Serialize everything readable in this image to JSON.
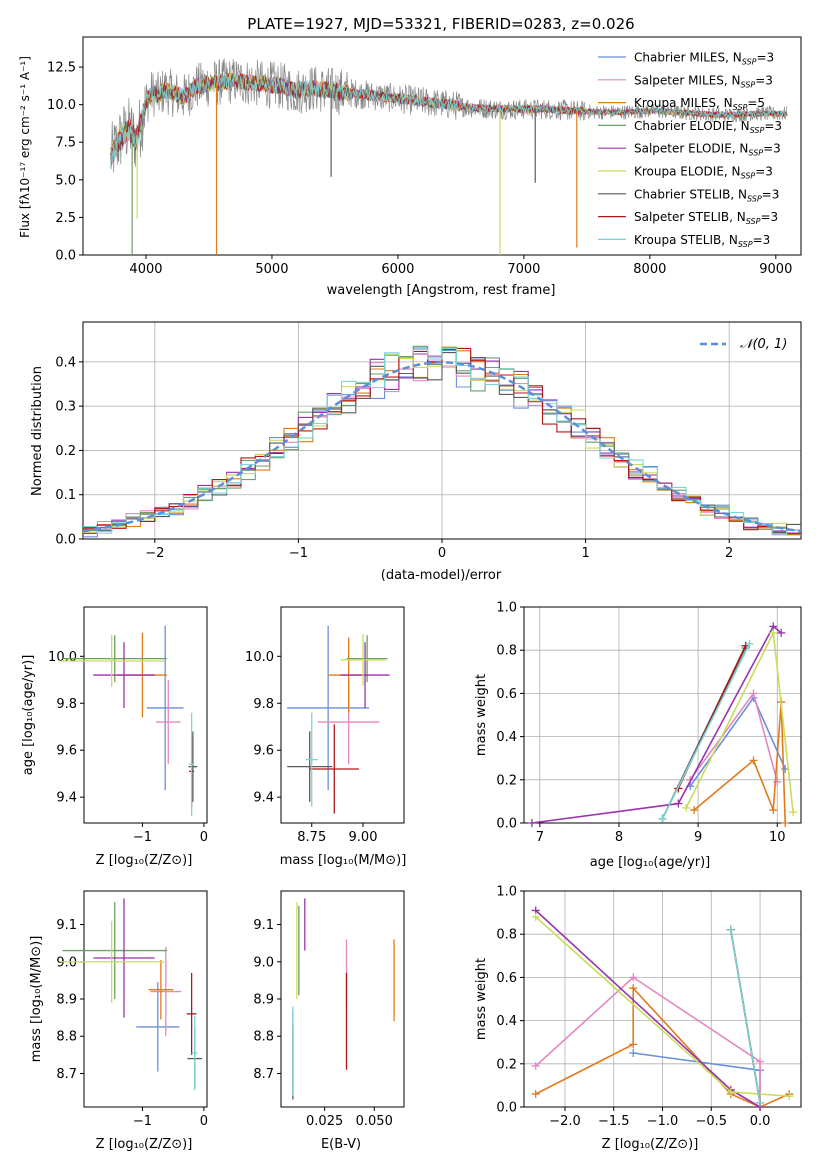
{
  "title": "PLATE=1927, MJD=53321, FIBERID=0283, z=0.026",
  "models": [
    {
      "name": "Chabrier MILES",
      "nssp": "3",
      "color": "#6a8fd9"
    },
    {
      "name": "Salpeter MILES",
      "nssp": "3",
      "color": "#e587c2"
    },
    {
      "name": "Kroupa MILES",
      "nssp": "5",
      "color": "#e07b1c"
    },
    {
      "name": "Chabrier ELODIE",
      "nssp": "3",
      "color": "#6a9e6a"
    },
    {
      "name": "Salpeter ELODIE",
      "nssp": "3",
      "color": "#9b32ad"
    },
    {
      "name": "Kroupa ELODIE",
      "nssp": "3",
      "color": "#c8dd5a"
    },
    {
      "name": "Chabrier STELIB",
      "nssp": "3",
      "color": "#5a5a5a"
    },
    {
      "name": "Salpeter STELIB",
      "nssp": "3",
      "color": "#b01818"
    },
    {
      "name": "Kroupa STELIB",
      "nssp": "3",
      "color": "#7ad6d6"
    }
  ],
  "legend_nssp_prefix": "N",
  "legend_nssp_sub": "SSP",
  "chart_data": [
    {
      "id": "spectrum",
      "type": "line",
      "xlabel": "wavelength [Angstrom, rest frame]",
      "ylabel": "Flux [fλ10⁻¹⁷ erg cm⁻² s⁻¹ A⁻¹]",
      "xlim": [
        3500,
        9200
      ],
      "ylim": [
        0,
        14.5
      ],
      "xticks": [
        4000,
        5000,
        6000,
        7000,
        8000,
        9000
      ],
      "yticks": [
        0.0,
        2.5,
        5.0,
        7.5,
        10.0,
        12.5
      ],
      "data_color": "#888888",
      "continuum": [
        [
          3720,
          6.5
        ],
        [
          3760,
          7.2
        ],
        [
          3820,
          8.0
        ],
        [
          3870,
          8.4
        ],
        [
          3920,
          7.6
        ],
        [
          3970,
          9.0
        ],
        [
          4000,
          10.2
        ],
        [
          4050,
          10.8
        ],
        [
          4100,
          10.6
        ],
        [
          4150,
          11.0
        ],
        [
          4200,
          10.8
        ],
        [
          4300,
          10.5
        ],
        [
          4400,
          11.2
        ],
        [
          4500,
          11.4
        ],
        [
          4600,
          11.5
        ],
        [
          4700,
          11.6
        ],
        [
          4800,
          11.5
        ],
        [
          4900,
          11.4
        ],
        [
          5000,
          11.3
        ],
        [
          5100,
          11.2
        ],
        [
          5200,
          10.9
        ],
        [
          5300,
          11.1
        ],
        [
          5400,
          11.0
        ],
        [
          5500,
          10.9
        ],
        [
          5600,
          10.8
        ],
        [
          5800,
          10.6
        ],
        [
          6000,
          10.4
        ],
        [
          6200,
          10.2
        ],
        [
          6400,
          10.0
        ],
        [
          6600,
          9.8
        ],
        [
          6800,
          9.7
        ],
        [
          7000,
          9.7
        ],
        [
          7200,
          9.7
        ],
        [
          7400,
          9.6
        ],
        [
          7600,
          9.5
        ],
        [
          7800,
          9.5
        ],
        [
          8000,
          9.6
        ],
        [
          8200,
          9.5
        ],
        [
          8400,
          9.4
        ],
        [
          8600,
          9.3
        ],
        [
          8800,
          9.4
        ],
        [
          9000,
          9.4
        ],
        [
          9090,
          9.4
        ]
      ],
      "noise_ranges": [
        [
          3720,
          4000,
          2.2
        ],
        [
          4000,
          5600,
          1.6
        ],
        [
          5600,
          6500,
          1.0
        ],
        [
          6500,
          7500,
          0.7
        ],
        [
          7500,
          9090,
          0.5
        ]
      ],
      "spikes": [
        {
          "x": 3890,
          "bottom": 0.0,
          "color": "#6a9e6a"
        },
        {
          "x": 3930,
          "bottom": 2.4,
          "color": "#c8dd5a"
        },
        {
          "x": 4560,
          "bottom": 0.0,
          "color": "#e07b1c"
        },
        {
          "x": 5470,
          "bottom": 5.2,
          "color": "#5a5a5a"
        },
        {
          "x": 6810,
          "bottom": 0.0,
          "color": "#c8dd5a"
        },
        {
          "x": 7090,
          "bottom": 4.8,
          "color": "#5a5a5a"
        },
        {
          "x": 7420,
          "bottom": 0.5,
          "color": "#e07b1c"
        }
      ]
    },
    {
      "id": "residuals",
      "type": "line",
      "xlabel": "(data-model)/error",
      "ylabel": "Normed distribution",
      "xlim": [
        -2.5,
        2.5
      ],
      "ylim": [
        0.0,
        0.49
      ],
      "xticks": [
        -2,
        -1,
        0,
        1,
        2
      ],
      "yticks": [
        0.0,
        0.1,
        0.2,
        0.3,
        0.4
      ],
      "grid": true,
      "legend": "top-right",
      "legend_label": "𝒩(0, 1)",
      "bin_width": 0.1,
      "gaussian": {
        "mean": 0,
        "sigma": 1,
        "color": "#5b8fd9"
      }
    },
    {
      "id": "age-vs-Z",
      "type": "scatter",
      "xlabel": "Z [log₁₀(Z/Z⊙)]",
      "ylabel": "age  [log₁₀(age/yr)]",
      "xlim": [
        -1.95,
        0.05
      ],
      "ylim": [
        9.29,
        10.21
      ],
      "xticks": [
        -1,
        0
      ],
      "yticks": [
        9.4,
        9.6,
        9.8,
        10.0
      ],
      "points": [
        {
          "x": -0.63,
          "xerr": 0.3,
          "y": 9.78,
          "yerr": 0.35
        },
        {
          "x": -0.58,
          "xerr": 0.2,
          "y": 9.72,
          "yerr": 0.18
        },
        {
          "x": -1.0,
          "xerr": 0.4,
          "y": 9.92,
          "yerr": 0.18
        },
        {
          "x": -1.45,
          "xerr": 0.85,
          "y": 9.99,
          "yerr": 0.1
        },
        {
          "x": -1.3,
          "xerr": 0.5,
          "y": 9.92,
          "yerr": 0.14
        },
        {
          "x": -1.5,
          "xerr": 0.85,
          "y": 9.98,
          "yerr": 0.11
        },
        {
          "x": -0.18,
          "xerr": 0.07,
          "y": 9.53,
          "yerr": 0.15
        },
        {
          "x": -0.2,
          "xerr": 0.04,
          "y": 9.51,
          "yerr": 0.15
        },
        {
          "x": -0.2,
          "xerr": 0.04,
          "y": 9.54,
          "yerr": 0.22
        }
      ]
    },
    {
      "id": "age-vs-mass",
      "type": "scatter",
      "xlabel": "mass [log₁₀(M/M⊙)]",
      "ylabel": "",
      "xlim": [
        8.6,
        9.2
      ],
      "ylim": [
        9.29,
        10.21
      ],
      "xticks": [
        8.75,
        9.0
      ],
      "yticks": [
        9.4,
        9.6,
        9.8,
        10.0
      ],
      "points": [
        {
          "x": 8.83,
          "xerr": 0.2,
          "y": 9.78,
          "yerr": 0.35
        },
        {
          "x": 8.93,
          "xerr": 0.15,
          "y": 9.72,
          "yerr": 0.18
        },
        {
          "x": 8.93,
          "xerr": 0.1,
          "y": 9.92,
          "yerr": 0.16
        },
        {
          "x": 9.02,
          "xerr": 0.1,
          "y": 9.99,
          "yerr": 0.1
        },
        {
          "x": 9.01,
          "xerr": 0.12,
          "y": 9.92,
          "yerr": 0.14
        },
        {
          "x": 9.0,
          "xerr": 0.11,
          "y": 9.985,
          "yerr": 0.11
        },
        {
          "x": 8.74,
          "xerr": 0.11,
          "y": 9.53,
          "yerr": 0.15
        },
        {
          "x": 8.86,
          "xerr": 0.12,
          "y": 9.52,
          "yerr": 0.19
        },
        {
          "x": 8.75,
          "xerr": 0.03,
          "y": 9.56,
          "yerr": 0.2
        }
      ]
    },
    {
      "id": "weight-vs-age",
      "type": "line",
      "xlabel": "age  [log₁₀(age/yr)]",
      "ylabel": "mass weight",
      "xlim": [
        6.8,
        10.3
      ],
      "ylim": [
        0.0,
        1.0
      ],
      "xticks": [
        7,
        8,
        9,
        10
      ],
      "yticks": [
        0.0,
        0.2,
        0.4,
        0.6,
        0.8,
        1.0
      ],
      "grid": true,
      "series": [
        [
          [
            8.9,
            0.17
          ],
          [
            9.7,
            0.58
          ],
          [
            10.1,
            0.25
          ]
        ],
        [
          [
            8.9,
            0.2
          ],
          [
            9.7,
            0.6
          ],
          [
            10.0,
            0.19
          ]
        ],
        [
          [
            8.95,
            0.06
          ],
          [
            9.7,
            0.29
          ],
          [
            9.95,
            0.06
          ],
          [
            10.05,
            0.56
          ],
          [
            10.1,
            0.0
          ]
        ],
        [
          [
            8.55,
            0.02
          ],
          [
            9.6,
            0.81
          ]
        ],
        [
          [
            6.9,
            0.0
          ],
          [
            8.75,
            0.09
          ],
          [
            9.95,
            0.91
          ],
          [
            10.05,
            0.88
          ]
        ],
        [
          [
            8.85,
            0.07
          ],
          [
            9.95,
            0.88
          ],
          [
            10.2,
            0.05
          ]
        ],
        [
          [
            8.55,
            0.02
          ],
          [
            9.6,
            0.82
          ]
        ],
        [
          [
            8.75,
            0.16
          ],
          [
            9.6,
            0.82
          ]
        ],
        [
          [
            8.55,
            0.02
          ],
          [
            9.65,
            0.83
          ]
        ]
      ]
    },
    {
      "id": "mass-vs-Z",
      "type": "scatter",
      "xlabel": "Z [log₁₀(Z/Z⊙)]",
      "ylabel": "mass [log₁₀(M/M⊙)]",
      "xlim": [
        -1.95,
        0.05
      ],
      "ylim": [
        8.61,
        9.19
      ],
      "xticks": [
        -1,
        0
      ],
      "yticks": [
        8.7,
        8.8,
        8.9,
        9.0,
        9.1
      ],
      "points": [
        {
          "x": -0.75,
          "xerr": 0.35,
          "y": 8.825,
          "yerr": 0.12
        },
        {
          "x": -0.62,
          "xerr": 0.25,
          "y": 8.92,
          "yerr": 0.12
        },
        {
          "x": -0.7,
          "xerr": 0.2,
          "y": 8.925,
          "yerr": 0.08
        },
        {
          "x": -1.45,
          "xerr": 0.85,
          "y": 9.03,
          "yerr": 0.13
        },
        {
          "x": -1.3,
          "xerr": 0.5,
          "y": 9.01,
          "yerr": 0.16
        },
        {
          "x": -1.5,
          "xerr": 0.85,
          "y": 9.0,
          "yerr": 0.11
        },
        {
          "x": -0.15,
          "xerr": 0.12,
          "y": 8.74,
          "yerr": 0.08
        },
        {
          "x": -0.2,
          "xerr": 0.08,
          "y": 8.86,
          "yerr": 0.11
        },
        {
          "x": -0.15,
          "xerr": 0.05,
          "y": 8.755,
          "yerr": 0.1
        }
      ]
    },
    {
      "id": "mass-vs-EBV",
      "type": "scatter",
      "xlabel": "E(B-V)",
      "ylabel": "",
      "xlim": [
        0.003,
        0.065
      ],
      "ylim": [
        8.61,
        9.19
      ],
      "xticks": [
        0.025,
        0.05
      ],
      "yticks": [
        8.7,
        8.8,
        8.9,
        9.0,
        9.1
      ],
      "points": [
        {
          "x": 0.009,
          "xerr": 0.0,
          "y": 8.76,
          "yerr": 0.11
        },
        {
          "x": 0.036,
          "xerr": 0.0,
          "y": 8.97,
          "yerr": 0.09
        },
        {
          "x": 0.06,
          "xerr": 0.0,
          "y": 8.95,
          "yerr": 0.11
        },
        {
          "x": 0.012,
          "xerr": 0.0,
          "y": 9.03,
          "yerr": 0.12
        },
        {
          "x": 0.015,
          "xerr": 0.0,
          "y": 9.1,
          "yerr": 0.07
        },
        {
          "x": 0.011,
          "xerr": 0.0,
          "y": 9.03,
          "yerr": 0.13
        },
        {
          "x": 0.009,
          "xerr": 0.0,
          "y": 8.73,
          "yerr": 0.1
        },
        {
          "x": 0.036,
          "xerr": 0.0,
          "y": 8.84,
          "yerr": 0.13
        },
        {
          "x": 0.009,
          "xerr": 0.0,
          "y": 8.76,
          "yerr": 0.12
        }
      ]
    },
    {
      "id": "weight-vs-Z",
      "type": "line",
      "xlabel": "Z [log₁₀(Z/Z⊙)]",
      "ylabel": "mass weight",
      "xlim": [
        -2.42,
        0.42
      ],
      "ylim": [
        0.0,
        1.0
      ],
      "xticks": [
        -2.0,
        -1.5,
        -1.0,
        -0.5,
        0.0
      ],
      "yticks": [
        0.0,
        0.2,
        0.4,
        0.6,
        0.8,
        1.0
      ],
      "grid": true,
      "series": [
        [
          [
            -1.3,
            0.25
          ],
          [
            0.0,
            0.17
          ],
          [
            0.0,
            0.0
          ]
        ],
        [
          [
            -2.3,
            0.19
          ],
          [
            -1.3,
            0.6
          ],
          [
            0.0,
            0.21
          ],
          [
            0.0,
            0.0
          ]
        ],
        [
          [
            -2.3,
            0.06
          ],
          [
            -1.3,
            0.29
          ],
          [
            -1.3,
            0.55
          ],
          [
            -0.3,
            0.06
          ],
          [
            0.0,
            0.0
          ],
          [
            0.3,
            0.06
          ]
        ],
        [
          [
            -0.3,
            0.82
          ],
          [
            0.0,
            0.02
          ]
        ],
        [
          [
            -2.3,
            0.91
          ],
          [
            -0.3,
            0.08
          ],
          [
            0.0,
            0.0
          ]
        ],
        [
          [
            -2.3,
            0.88
          ],
          [
            -0.3,
            0.07
          ],
          [
            0.3,
            0.05
          ]
        ],
        [
          [
            -0.3,
            0.82
          ],
          [
            0.0,
            0.02
          ]
        ],
        [
          [
            -0.3,
            0.82
          ],
          [
            0.0,
            0.02
          ]
        ],
        [
          [
            -0.3,
            0.82
          ],
          [
            0.0,
            0.02
          ]
        ]
      ]
    }
  ]
}
